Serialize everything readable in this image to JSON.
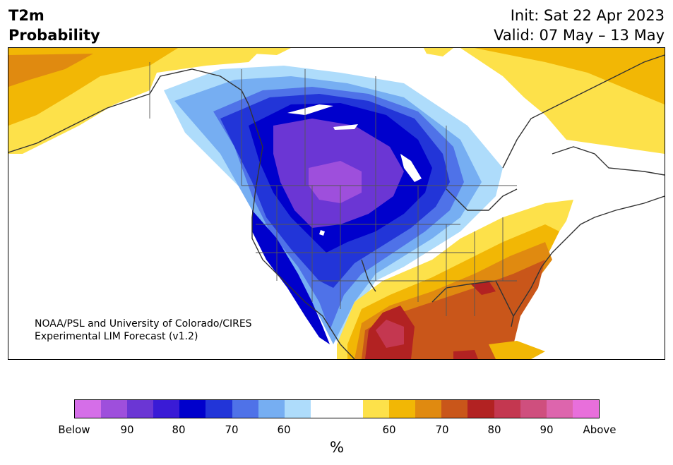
{
  "title": {
    "line1": "T2m",
    "line2": "Probability",
    "init": "Init: Sat 22 Apr 2023",
    "valid": "Valid: 07 May – 13 May"
  },
  "credit": {
    "line1": "NOAA/PSL and University of Colorado/CIRES",
    "line2": "Experimental LIM Forecast (v1.2)"
  },
  "colorbar": {
    "colors": [
      "#d56ee8",
      "#9e4fdc",
      "#6b36d4",
      "#3a1bd6",
      "#0000cc",
      "#2235d8",
      "#4f72e8",
      "#76aef2",
      "#aedcfb",
      "#ffffff",
      "#ffffff",
      "#fde14a",
      "#f2b705",
      "#e08a10",
      "#c9561a",
      "#b22222",
      "#c43750",
      "#cf4f7e",
      "#dd65ad",
      "#e86fdb"
    ],
    "tick_labels": [
      "Below",
      "90",
      "80",
      "70",
      "60",
      "60",
      "70",
      "80",
      "90",
      "Above"
    ],
    "unit": "%"
  },
  "map": {
    "region": "North America",
    "color_key": {
      "above_warm": "#c9561a",
      "above_hot": "#b22222",
      "below_cold": "#0000cc",
      "below_coldest": "#9e4fdc"
    }
  }
}
